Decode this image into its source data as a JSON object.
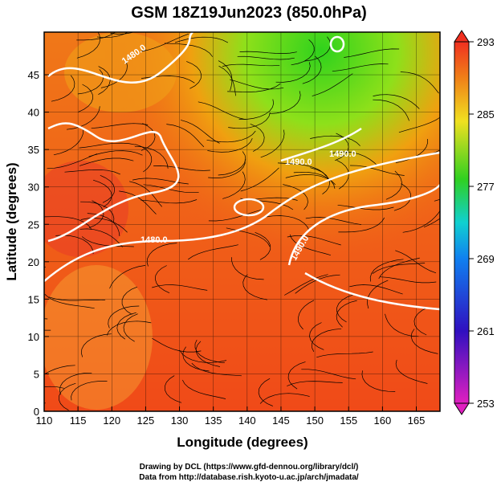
{
  "title": "GSM 18Z19Jun2023 (850.0hPa)",
  "x_axis": {
    "label": "Longitude (degrees)",
    "lim": [
      110,
      168.5
    ],
    "ticks": [
      110,
      115,
      120,
      125,
      130,
      135,
      140,
      145,
      150,
      155,
      160,
      165
    ]
  },
  "y_axis": {
    "label": "Latitude  (degrees)",
    "lim": [
      0,
      50.7
    ],
    "ticks": [
      0,
      5,
      10,
      15,
      20,
      25,
      30,
      35,
      40,
      45
    ]
  },
  "colorbar": {
    "lim": [
      253,
      293
    ],
    "ticks": [
      253,
      261,
      269,
      277,
      285,
      293
    ]
  },
  "contour_labels": [
    "1480.0",
    "1480.0",
    "1490.0",
    "1490.0",
    "1490.0"
  ],
  "credits": [
    "Drawing by DCL (https://www.gfd-dennou.org/library/dcl/)",
    "Data from http://database.rish.kyoto-u.ac.jp/arch/jmadata/"
  ]
}
